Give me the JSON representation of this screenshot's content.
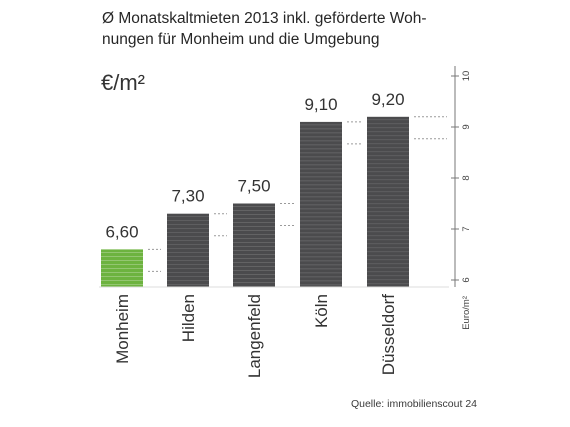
{
  "chart_data": {
    "type": "bar",
    "title": "Ø Monatskaltmieten 2013 inkl. geförderte Wohnungen für Monheim und die Umgebung",
    "title_lines": [
      "Ø Monatskaltmieten 2013 inkl. geförderte Woh-",
      "nungen für Monheim und die Umgebung"
    ],
    "unit_label": "€/m²",
    "categories": [
      "Monheim",
      "Hilden",
      "Langenfeld",
      "Köln",
      "Düsseldorf"
    ],
    "values": [
      6.6,
      7.3,
      7.5,
      9.1,
      9.2
    ],
    "value_labels": [
      "6,60",
      "7,30",
      "7,50",
      "9,10",
      "9,20"
    ],
    "ylim": [
      6,
      10
    ],
    "y_ticks": [
      "6",
      "7",
      "8",
      "9",
      "10"
    ],
    "y_axis_label": "Euro/m²",
    "source": "Quelle: immobilienscout 24",
    "colors": {
      "highlight": "#6db33f",
      "bar": "#4b4b4d",
      "text": "#333333",
      "leader": "#9a9a9a"
    }
  }
}
